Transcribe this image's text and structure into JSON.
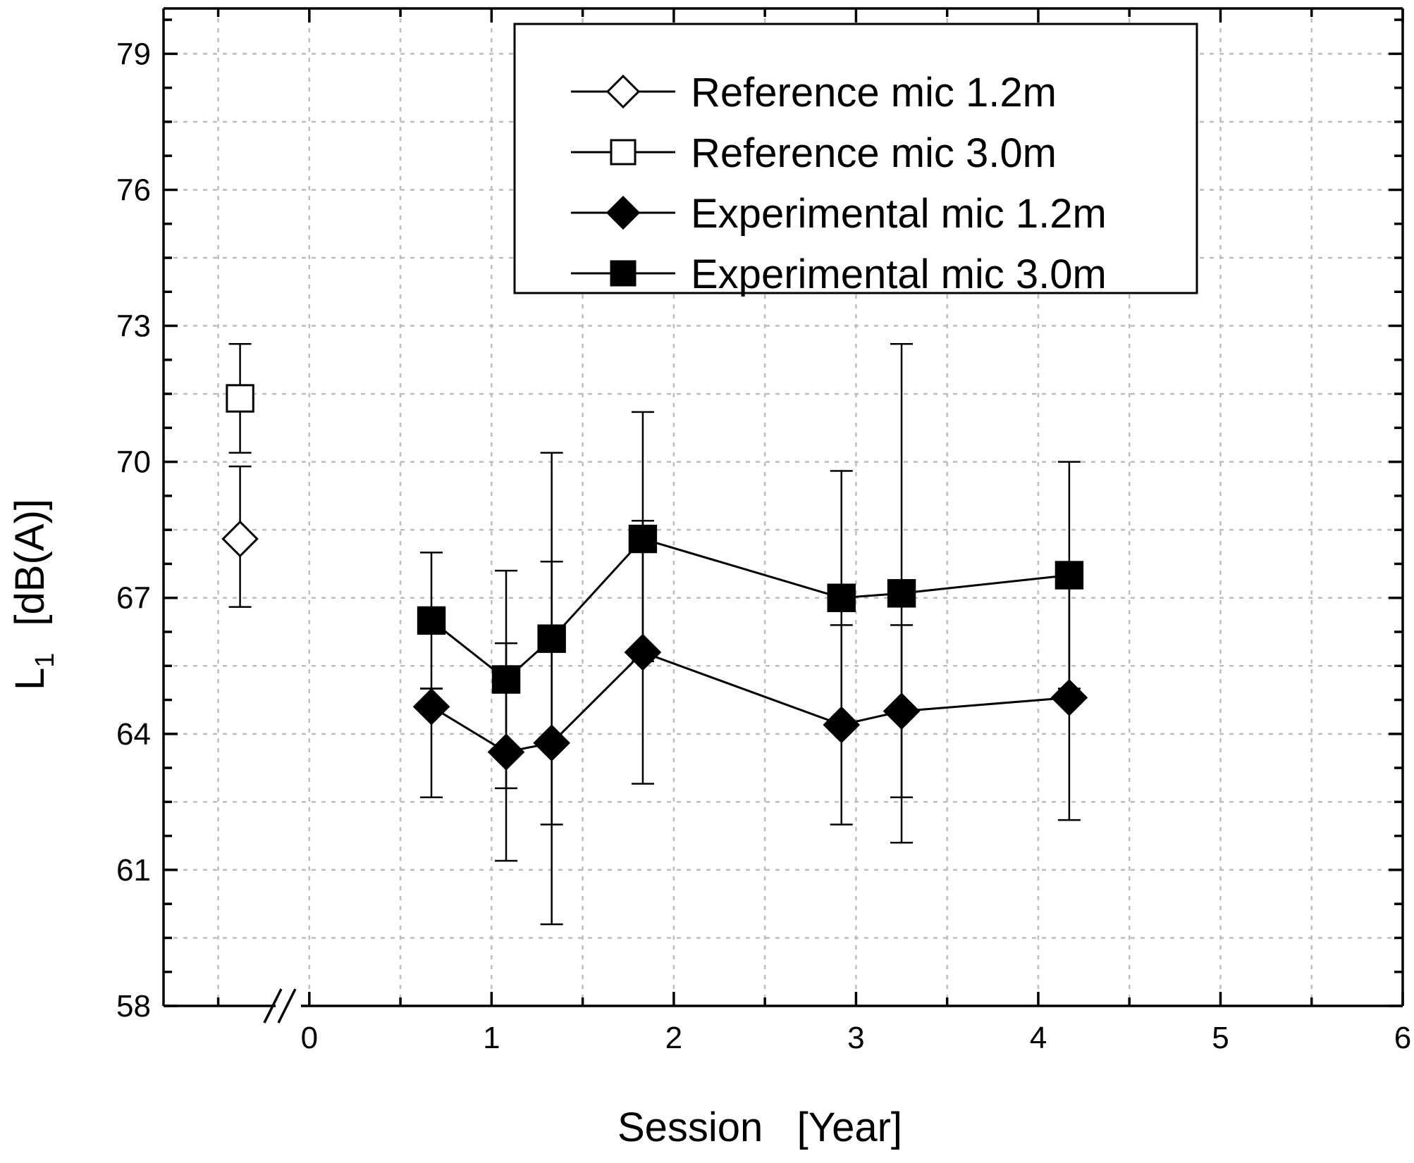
{
  "chart_data": {
    "type": "line",
    "title": "",
    "xlabel": "Session   [Year]",
    "ylabel_main": "L",
    "ylabel_sub": "1",
    "ylabel_unit": "[dB(A)]",
    "xlim": [
      -0.8,
      6
    ],
    "ylim": [
      58,
      80
    ],
    "x_ticks": [
      0,
      1,
      2,
      3,
      4,
      5,
      6
    ],
    "y_ticks": [
      58,
      61,
      64,
      67,
      70,
      73,
      76,
      79
    ],
    "axis_break_x": -0.1,
    "grid": true,
    "legend_position": "top-right",
    "series": [
      {
        "name": "Reference mic 1.2m",
        "marker": "diamond-open",
        "points": [
          {
            "x": -0.38,
            "y": 68.3,
            "lo": 66.8,
            "hi": 69.9
          }
        ]
      },
      {
        "name": "Reference mic 3.0m",
        "marker": "square-open",
        "points": [
          {
            "x": -0.38,
            "y": 71.4,
            "lo": 70.2,
            "hi": 72.6
          }
        ]
      },
      {
        "name": "Experimental mic 1.2m",
        "marker": "diamond-filled",
        "points": [
          {
            "x": 0.67,
            "y": 64.6,
            "lo": 62.6,
            "hi": 65.0
          },
          {
            "x": 1.08,
            "y": 63.6,
            "lo": 61.2,
            "hi": 66.0
          },
          {
            "x": 1.33,
            "y": 63.8,
            "lo": 59.8,
            "hi": 67.8
          },
          {
            "x": 1.83,
            "y": 65.8,
            "lo": 62.9,
            "hi": 68.7
          },
          {
            "x": 2.92,
            "y": 64.2,
            "lo": 62.0,
            "hi": 66.4
          },
          {
            "x": 3.25,
            "y": 64.5,
            "lo": 61.6,
            "hi": 66.4
          },
          {
            "x": 4.17,
            "y": 64.8,
            "lo": 62.1,
            "hi": 67.5
          }
        ]
      },
      {
        "name": "Experimental mic 3.0m",
        "marker": "square-filled",
        "points": [
          {
            "x": 0.67,
            "y": 66.5,
            "lo": 65.0,
            "hi": 68.0
          },
          {
            "x": 1.08,
            "y": 65.2,
            "lo": 62.8,
            "hi": 67.6
          },
          {
            "x": 1.33,
            "y": 66.1,
            "lo": 62.0,
            "hi": 70.2
          },
          {
            "x": 1.83,
            "y": 68.3,
            "lo": 65.6,
            "hi": 71.1
          },
          {
            "x": 2.92,
            "y": 67.0,
            "lo": 64.2,
            "hi": 69.8
          },
          {
            "x": 3.25,
            "y": 67.1,
            "lo": 62.6,
            "hi": 72.6
          },
          {
            "x": 4.17,
            "y": 67.5,
            "lo": 65.0,
            "hi": 70.0
          }
        ]
      }
    ]
  },
  "colors": {
    "ink": "#000000",
    "grid": "#bdbdbd",
    "background": "#ffffff"
  }
}
